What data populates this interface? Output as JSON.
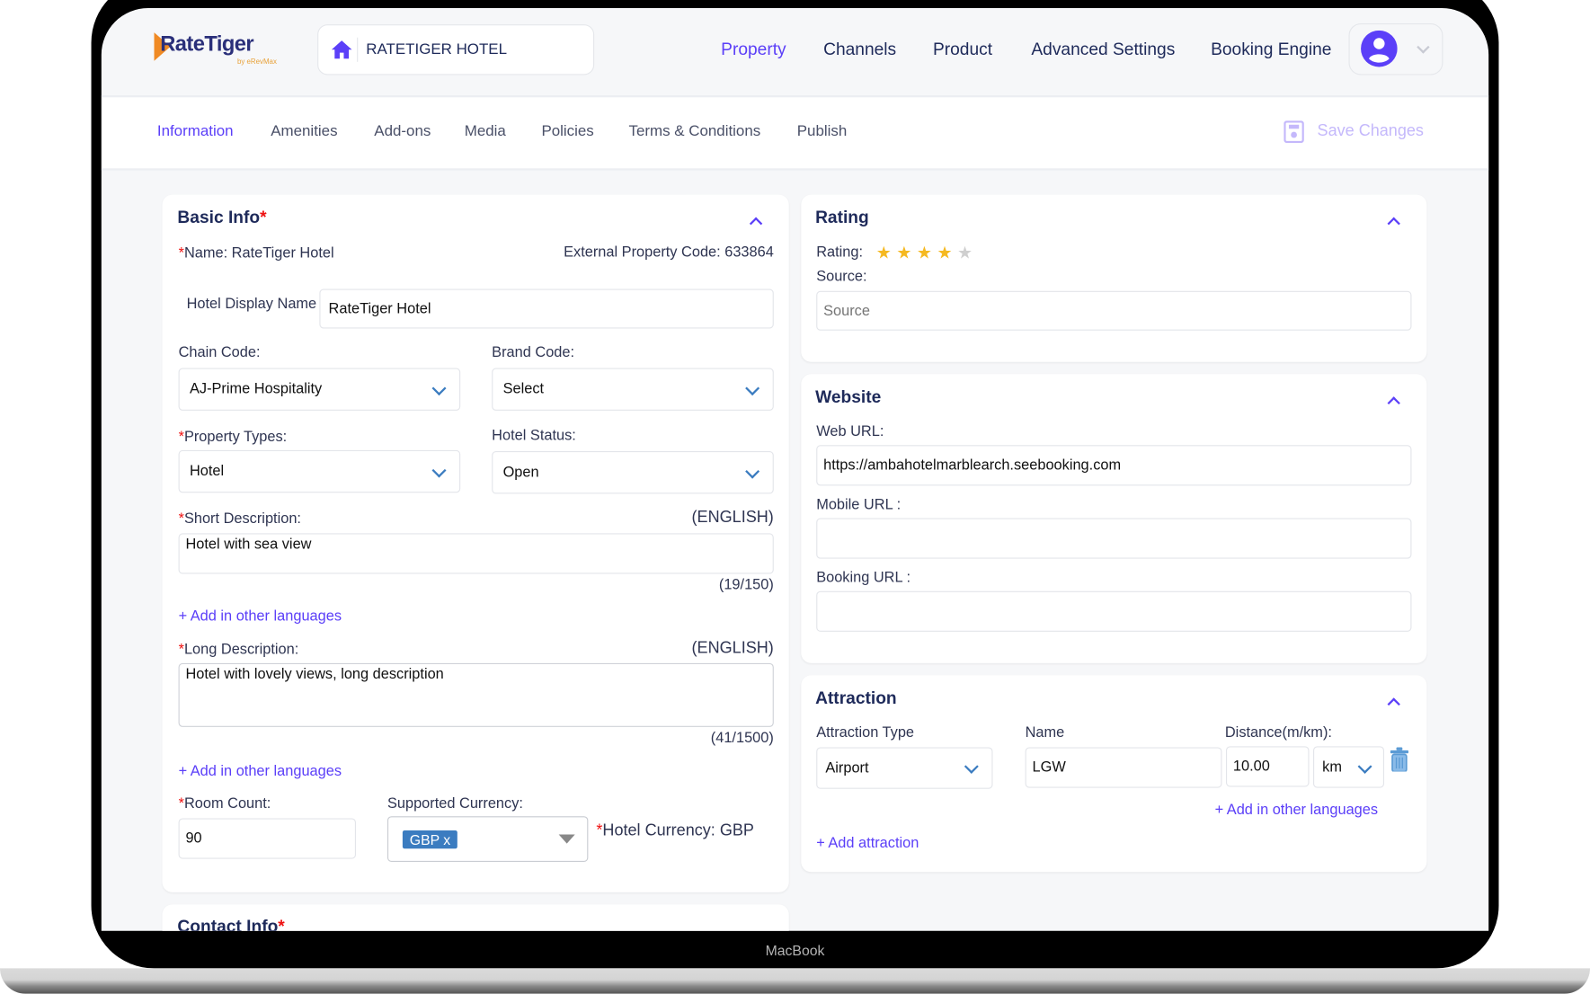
{
  "device_label": "MacBook",
  "header": {
    "logo_text": "RateTiger",
    "logo_sub": "by eRevMax",
    "hotel_selector": "RATETIGER HOTEL",
    "nav": [
      "Property",
      "Channels",
      "Product",
      "Advanced Settings",
      "Booking Engine"
    ],
    "active_nav": "Property"
  },
  "subnav": {
    "tabs": [
      "Information",
      "Amenities",
      "Add-ons",
      "Media",
      "Policies",
      "Terms & Conditions",
      "Publish"
    ],
    "active_tab": "Information",
    "save_label": "Save Changes"
  },
  "basic_info": {
    "title": "Basic Info",
    "name": "Name: RateTiger Hotel",
    "external_code": "External Property Code: 633864",
    "display_name_label": "Hotel Display Name",
    "display_name_value": "RateTiger Hotel",
    "chain_code_label": "Chain Code:",
    "chain_code_value": "AJ-Prime Hospitality",
    "brand_code_label": "Brand Code:",
    "brand_code_value": "Select",
    "property_types_label": "Property Types:",
    "property_types_value": "Hotel",
    "hotel_status_label": "Hotel Status:",
    "hotel_status_value": "Open",
    "short_desc_label": "Short Description:",
    "short_desc_lang": "(ENGLISH)",
    "short_desc_value": "Hotel with sea view",
    "short_desc_count": "(19/150)",
    "add_lang": "+ Add in other languages",
    "long_desc_label": "Long Description:",
    "long_desc_lang": "(ENGLISH)",
    "long_desc_value": "Hotel with lovely views, long description",
    "long_desc_count": "(41/1500)",
    "room_count_label": "Room Count:",
    "room_count_value": "90",
    "currency_label": "Supported Currency:",
    "currency_chip": "GBP x",
    "hotel_currency": "Hotel Currency: GBP"
  },
  "contact_info": {
    "title": "Contact Info"
  },
  "rating": {
    "title": "Rating",
    "rating_label": "Rating:",
    "stars": 4,
    "max_stars": 5,
    "source_label": "Source:",
    "source_placeholder": "Source"
  },
  "website": {
    "title": "Website",
    "web_url_label": "Web URL:",
    "web_url_value": "https://ambahotelmarblearch.seebooking.com",
    "mobile_url_label": "Mobile URL :",
    "booking_url_label": "Booking URL :"
  },
  "attraction": {
    "title": "Attraction",
    "type_label": "Attraction Type",
    "name_label": "Name",
    "distance_label": "Distance(m/km):",
    "type_value": "Airport",
    "name_value": "LGW",
    "distance_value": "10.00",
    "unit_value": "km",
    "add_lang": "+ Add in other languages",
    "add_attraction": "+ Add attraction"
  },
  "colors": {
    "accent": "#5b3ff8",
    "required": "#e11111",
    "star": "#f5b921",
    "chip": "#3b7cc0"
  }
}
